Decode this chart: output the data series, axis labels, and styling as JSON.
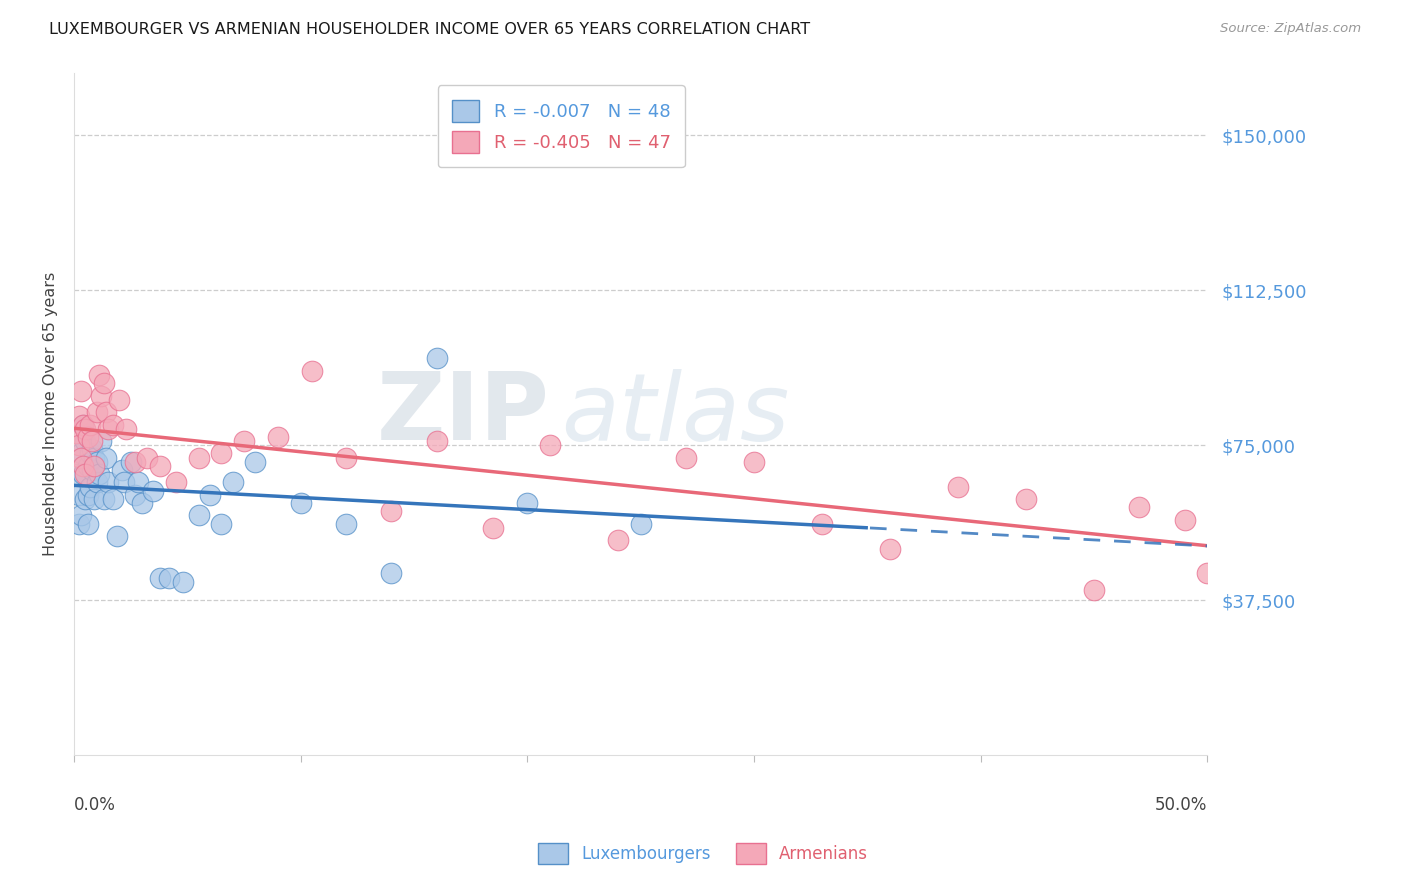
{
  "title": "LUXEMBOURGER VS ARMENIAN HOUSEHOLDER INCOME OVER 65 YEARS CORRELATION CHART",
  "source": "Source: ZipAtlas.com",
  "ylabel": "Householder Income Over 65 years",
  "watermark_zip": "ZIP",
  "watermark_atlas": "atlas",
  "ytick_values": [
    150000,
    112500,
    75000,
    37500
  ],
  "ylim": [
    0,
    165000
  ],
  "xlim": [
    0.0,
    0.5
  ],
  "lux_color": "#aac8e8",
  "arm_color": "#f4a8b8",
  "lux_edge_color": "#5590c8",
  "arm_edge_color": "#e87090",
  "lux_line_color": "#3575bb",
  "arm_line_color": "#e86878",
  "background_color": "#ffffff",
  "grid_color": "#c8c8c8",
  "lux_R": -0.007,
  "arm_R": -0.405,
  "lux_N": 48,
  "arm_N": 47,
  "lux_line_solid_end": 0.35,
  "lux_x": [
    0.001,
    0.002,
    0.002,
    0.003,
    0.003,
    0.004,
    0.004,
    0.005,
    0.005,
    0.006,
    0.006,
    0.006,
    0.007,
    0.007,
    0.008,
    0.008,
    0.009,
    0.009,
    0.01,
    0.01,
    0.011,
    0.012,
    0.013,
    0.014,
    0.015,
    0.017,
    0.019,
    0.021,
    0.022,
    0.025,
    0.027,
    0.028,
    0.03,
    0.035,
    0.038,
    0.042,
    0.048,
    0.055,
    0.06,
    0.065,
    0.07,
    0.08,
    0.1,
    0.12,
    0.14,
    0.16,
    0.2,
    0.25
  ],
  "lux_y": [
    68000,
    63000,
    56000,
    73000,
    58000,
    80000,
    68000,
    76000,
    62000,
    70000,
    63000,
    56000,
    73000,
    65000,
    69000,
    74000,
    62000,
    72000,
    66000,
    71000,
    68000,
    76000,
    62000,
    72000,
    66000,
    62000,
    53000,
    69000,
    66000,
    71000,
    63000,
    66000,
    61000,
    64000,
    43000,
    43000,
    42000,
    58000,
    63000,
    56000,
    66000,
    71000,
    61000,
    56000,
    44000,
    96000,
    61000,
    56000
  ],
  "arm_x": [
    0.001,
    0.002,
    0.002,
    0.003,
    0.003,
    0.004,
    0.004,
    0.005,
    0.005,
    0.006,
    0.007,
    0.008,
    0.009,
    0.01,
    0.011,
    0.012,
    0.013,
    0.014,
    0.015,
    0.017,
    0.02,
    0.023,
    0.027,
    0.032,
    0.038,
    0.045,
    0.055,
    0.065,
    0.075,
    0.09,
    0.105,
    0.12,
    0.14,
    0.16,
    0.185,
    0.21,
    0.24,
    0.27,
    0.3,
    0.33,
    0.36,
    0.39,
    0.42,
    0.45,
    0.47,
    0.49,
    0.5
  ],
  "arm_y": [
    78000,
    82000,
    75000,
    88000,
    72000,
    80000,
    70000,
    79000,
    68000,
    77000,
    80000,
    76000,
    70000,
    83000,
    92000,
    87000,
    90000,
    83000,
    79000,
    80000,
    86000,
    79000,
    71000,
    72000,
    70000,
    66000,
    72000,
    73000,
    76000,
    77000,
    93000,
    72000,
    59000,
    76000,
    55000,
    75000,
    52000,
    72000,
    71000,
    56000,
    50000,
    65000,
    62000,
    40000,
    60000,
    57000,
    44000
  ]
}
